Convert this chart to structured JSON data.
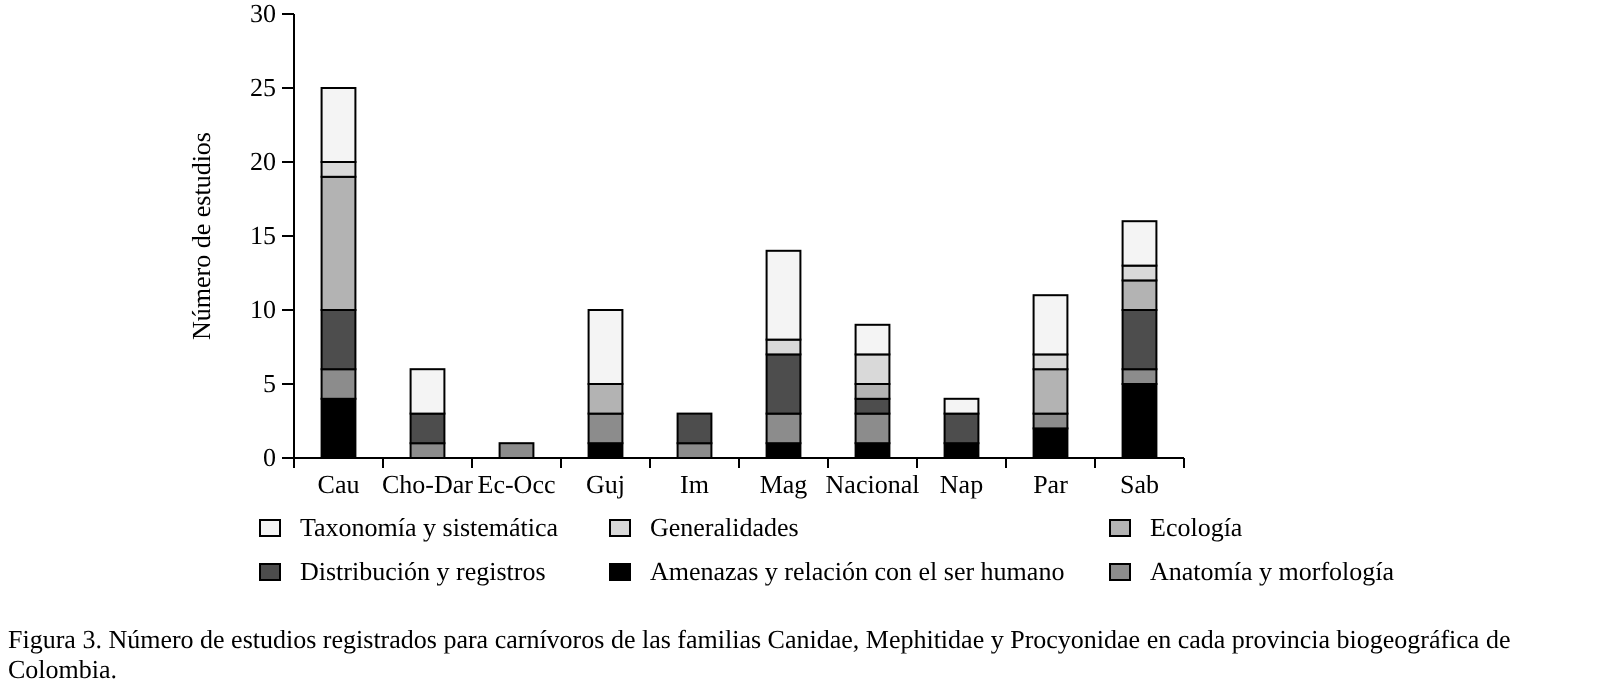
{
  "chart_data": {
    "type": "bar",
    "stacked": true,
    "ylabel": "Número de estudios",
    "categories": [
      "Cau",
      "Cho-Dar",
      "Ec-Occ",
      "Guj",
      "Im",
      "Mag",
      "Nacional",
      "Nap",
      "Par",
      "Sab"
    ],
    "ylim": [
      0,
      30
    ],
    "yticks": [
      0,
      5,
      10,
      15,
      20,
      25,
      30
    ],
    "legend": "bottom",
    "grid": false,
    "series": [
      {
        "name": "Amenazas y relación con el ser humano",
        "color": "#000000",
        "values": [
          4,
          0,
          0,
          1,
          0,
          1,
          1,
          1,
          2,
          5
        ]
      },
      {
        "name": "Anatomía y morfología",
        "color": "#8c8c8c",
        "values": [
          2,
          1,
          1,
          2,
          1,
          2,
          2,
          0,
          1,
          1
        ]
      },
      {
        "name": "Distribución y registros",
        "color": "#4d4d4d",
        "values": [
          4,
          2,
          0,
          0,
          2,
          4,
          1,
          2,
          0,
          4
        ]
      },
      {
        "name": "Ecología",
        "color": "#b3b3b3",
        "values": [
          9,
          0,
          0,
          2,
          0,
          0,
          1,
          0,
          3,
          2
        ]
      },
      {
        "name": "Generalidades",
        "color": "#d9d9d9",
        "values": [
          1,
          0,
          0,
          0,
          0,
          1,
          2,
          0,
          1,
          1
        ]
      },
      {
        "name": "Taxonomía y sistemática",
        "color": "#f4f4f4",
        "values": [
          5,
          3,
          0,
          5,
          0,
          6,
          2,
          1,
          4,
          3
        ]
      }
    ],
    "annotations": [
      "Figura 3. Número de estudios registrados para carnívoros de las familias Canidae, Mephitidae y Procyonidae en cada provincia biogeográfica de Colombia."
    ]
  }
}
